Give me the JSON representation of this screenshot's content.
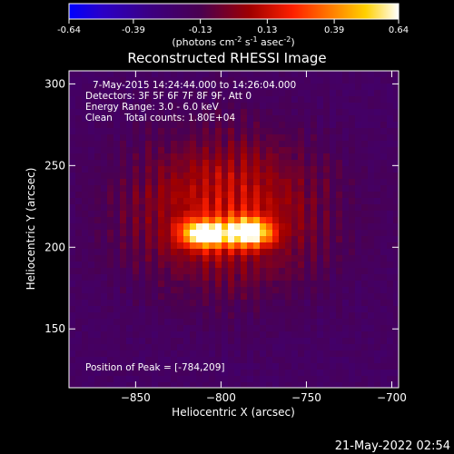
{
  "chart_data": {
    "type": "heatmap",
    "title": "Reconstructed RHESSI Image",
    "xlabel": "Heliocentric X (arcsec)",
    "ylabel": "Heliocentric Y (arcsec)",
    "xlim": [
      -889,
      -696
    ],
    "ylim": [
      114,
      308
    ],
    "x_ticks": [
      -850,
      -800,
      -750,
      -700
    ],
    "y_ticks": [
      150,
      200,
      250,
      300
    ],
    "colorbar": {
      "ticks": [
        -0.64,
        -0.39,
        -0.13,
        0.13,
        0.39,
        0.64
      ],
      "tick_labels": [
        "-0.64",
        "-0.39",
        "-0.13",
        "0.13",
        "0.39",
        "0.64"
      ],
      "unit_label_parts": [
        "(photons cm",
        "-2",
        " s",
        "-1",
        " asec",
        "-2",
        ")"
      ],
      "range": [
        -0.64,
        0.64
      ]
    },
    "annotations": [
      "7-May-2015 14:24:44.000 to 14:26:04.000",
      "Detectors: 3F 5F 6F 7F 8F 9F, Att 0",
      "Energy Range: 3.0 - 6.0 keV",
      "Clean    Total counts: 1.80E+04",
      "Position of Peak = [-784,209]"
    ],
    "sources": [
      {
        "x": -810,
        "y": 208,
        "peak": 0.6
      },
      {
        "x": -784,
        "y": 209,
        "peak": 0.64
      }
    ],
    "timestamp": "21-May-2022 02:54"
  }
}
